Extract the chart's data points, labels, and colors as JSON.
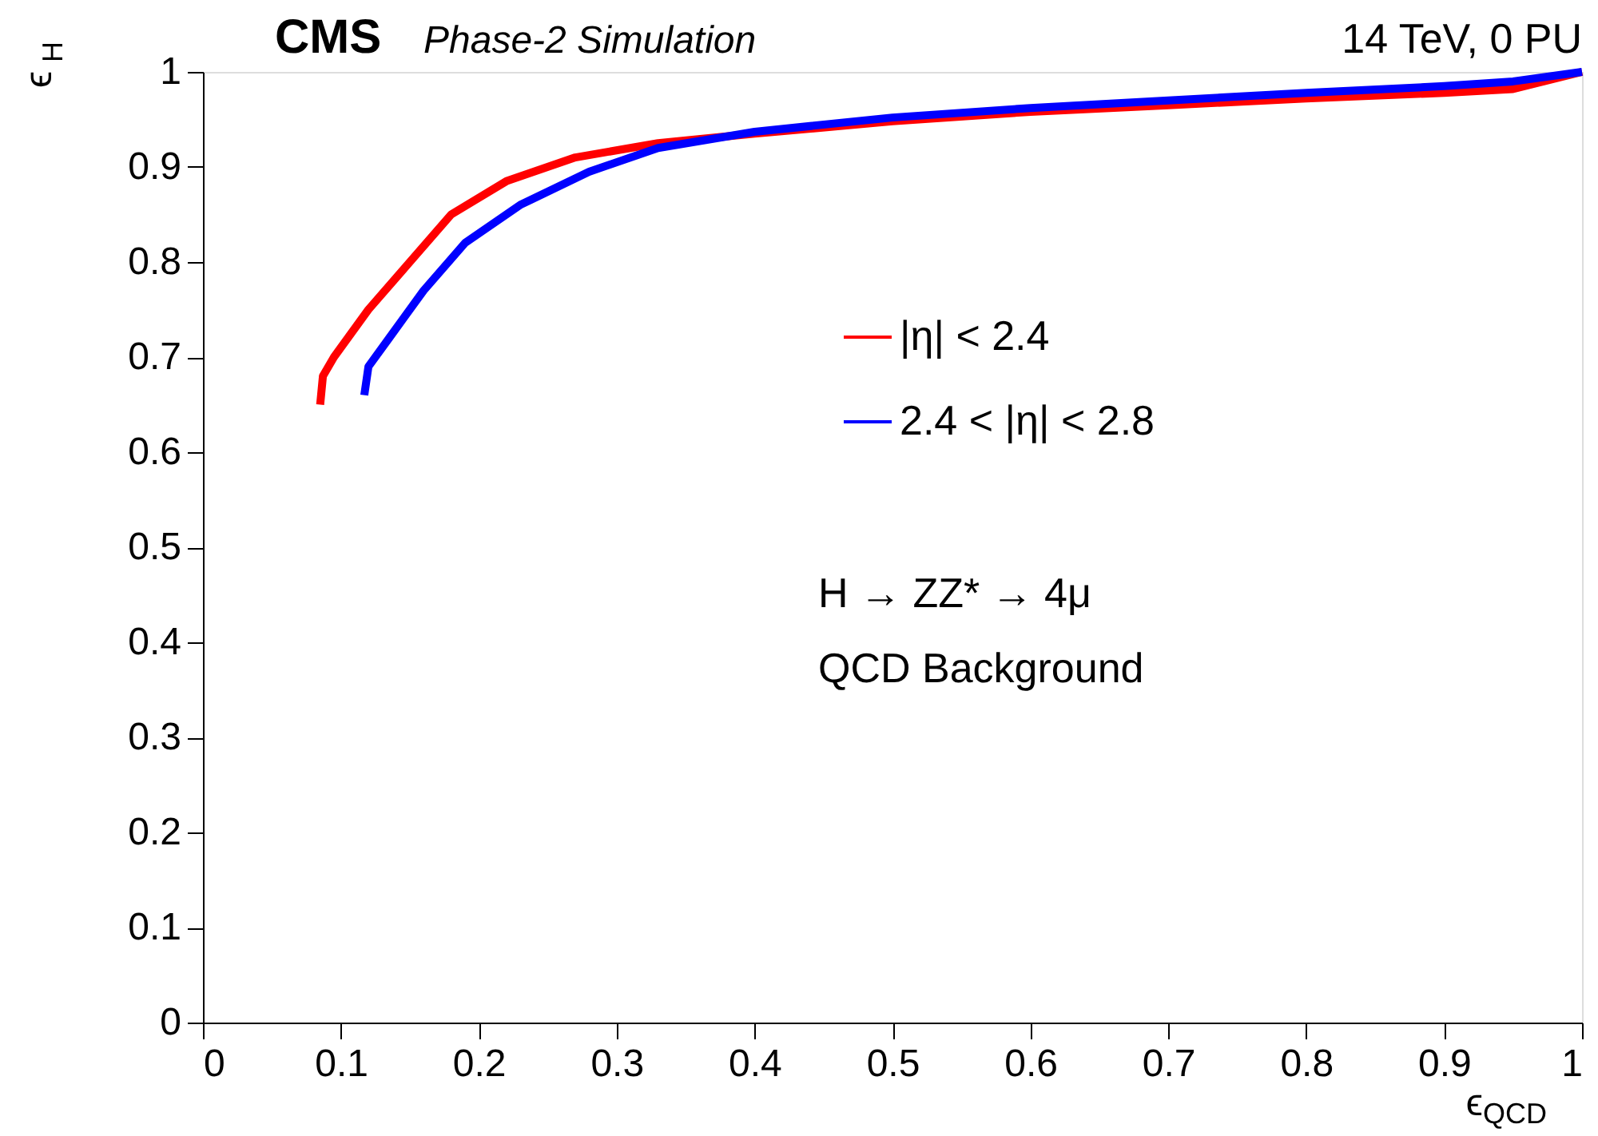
{
  "chart_data": {
    "type": "line",
    "title": "CMS",
    "subtitle": "Phase-2 Simulation",
    "xlabel": "ϵ$_{QCD}$",
    "ylabel": "ϵ$_{H}$",
    "annotations": [
      "14 TeV, 0 PU",
      "H → ZZ* → 4μ",
      "QCD Background"
    ],
    "series": [
      {
        "name": "|η| < 2.4",
        "color": "#ff0000",
        "x": [
          0.085,
          0.087,
          0.095,
          0.12,
          0.15,
          0.18,
          0.22,
          0.27,
          0.33,
          0.4,
          0.5,
          0.6,
          0.7,
          0.8,
          0.9,
          0.95,
          1.0
        ],
        "values": [
          0.65,
          0.68,
          0.7,
          0.75,
          0.8,
          0.85,
          0.885,
          0.91,
          0.925,
          0.935,
          0.948,
          0.958,
          0.965,
          0.972,
          0.978,
          0.982,
          1.0
        ]
      },
      {
        "name": "2.4 < |η| < 2.8",
        "color": "#0000ff",
        "x": [
          0.117,
          0.12,
          0.135,
          0.16,
          0.19,
          0.23,
          0.28,
          0.33,
          0.4,
          0.5,
          0.6,
          0.7,
          0.8,
          0.9,
          0.95,
          1.0
        ],
        "values": [
          0.66,
          0.69,
          0.72,
          0.77,
          0.82,
          0.86,
          0.895,
          0.92,
          0.937,
          0.952,
          0.962,
          0.97,
          0.978,
          0.985,
          0.99,
          1.0
        ]
      }
    ],
    "xlim": [
      0,
      1
    ],
    "ylim": [
      0,
      1
    ],
    "xticks": [
      0,
      0.1,
      0.2,
      0.3,
      0.4,
      0.5,
      0.6,
      0.7,
      0.8,
      0.9,
      1
    ],
    "yticks": [
      0,
      0.1,
      0.2,
      0.3,
      0.4,
      0.5,
      0.6,
      0.7,
      0.8,
      0.9,
      1
    ],
    "grid": false,
    "legend": "right",
    "line_style": "solid"
  }
}
